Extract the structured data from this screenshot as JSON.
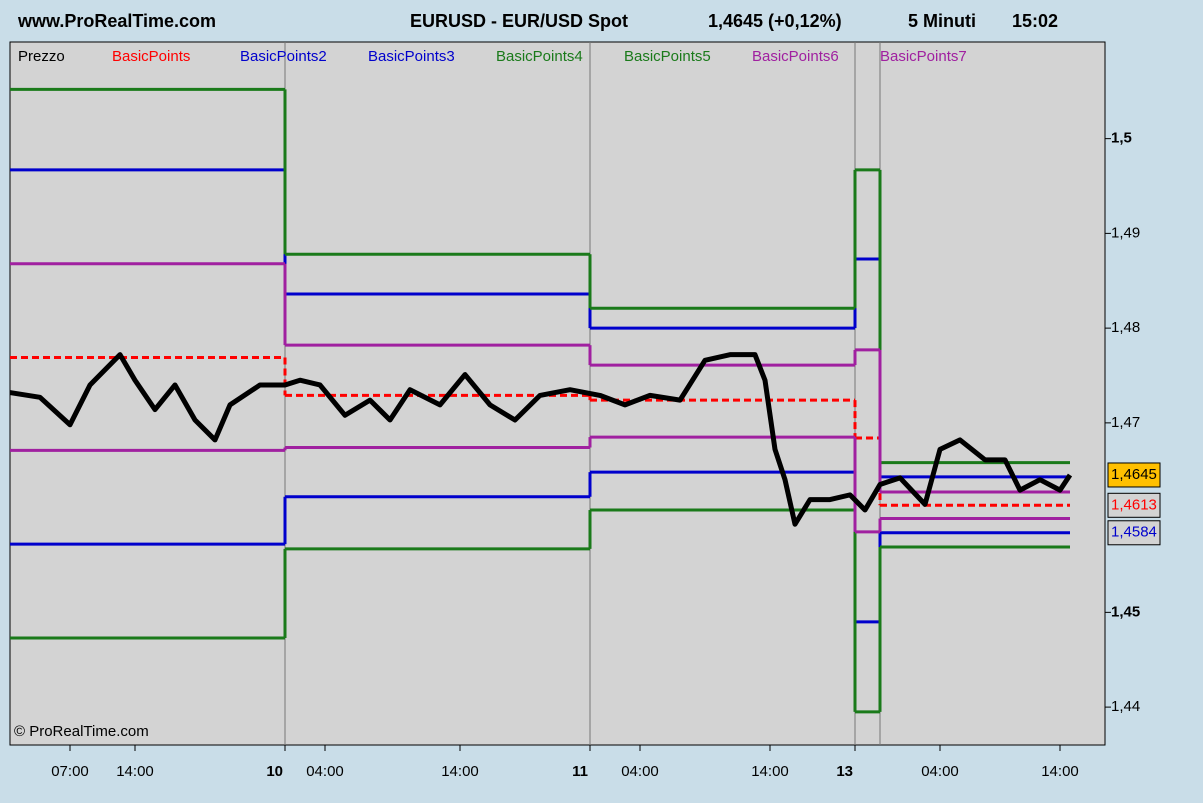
{
  "header": {
    "site": "www.ProRealTime.com",
    "instrument": "EURUSD - EUR/USD Spot",
    "quote": "1,4645 (+0,12%)",
    "timeframe": "5 Minuti",
    "time": "15:02"
  },
  "chart_data": {
    "type": "line",
    "copyright": "© ProRealTime.com",
    "xlim": [
      0,
      219
    ],
    "xticks": [
      {
        "value": 12,
        "label": "07:00"
      },
      {
        "value": 25,
        "label": "14:00"
      },
      {
        "value": 55,
        "label": "10",
        "bold": true
      },
      {
        "value": 63,
        "label": "04:00"
      },
      {
        "value": 90,
        "label": "14:00"
      },
      {
        "value": 116,
        "label": "11",
        "bold": true
      },
      {
        "value": 126,
        "label": "04:00"
      },
      {
        "value": 152,
        "label": "14:00"
      },
      {
        "value": 169,
        "label": "13",
        "bold": true
      },
      {
        "value": 186,
        "label": "04:00"
      },
      {
        "value": 210,
        "label": "14:00"
      }
    ],
    "ylim": [
      1.436,
      1.5102
    ],
    "yticks": [
      {
        "value": 1.44,
        "label": "1,44"
      },
      {
        "value": 1.45,
        "label": "1,45",
        "bold": true
      },
      {
        "value": 1.47,
        "label": "1,47"
      },
      {
        "value": 1.48,
        "label": "1,48"
      },
      {
        "value": 1.49,
        "label": "1,49"
      },
      {
        "value": 1.5,
        "label": "1,5",
        "bold": true
      }
    ],
    "price": {
      "name": "Prezzo",
      "color": "#000000",
      "last_label": "1,4645",
      "x": [
        0,
        6,
        12,
        16,
        22,
        25,
        29,
        33,
        37,
        41,
        44,
        50,
        55,
        58,
        62,
        67,
        72,
        76,
        80,
        86,
        91,
        96,
        101,
        106,
        112,
        118,
        123,
        128,
        134,
        139,
        144,
        149,
        151,
        153,
        155,
        157,
        160,
        164,
        168,
        171,
        174,
        178,
        183,
        186,
        190,
        195,
        199,
        202,
        206,
        210,
        212
      ],
      "values": [
        1.4732,
        1.4727,
        1.4698,
        1.474,
        1.4772,
        1.4745,
        1.4714,
        1.474,
        1.4703,
        1.4682,
        1.4719,
        1.474,
        1.474,
        1.4745,
        1.474,
        1.4708,
        1.4724,
        1.4703,
        1.4735,
        1.4719,
        1.4751,
        1.4719,
        1.4703,
        1.4729,
        1.4735,
        1.4729,
        1.4719,
        1.4729,
        1.4724,
        1.4766,
        1.4772,
        1.4772,
        1.4745,
        1.4672,
        1.464,
        1.4593,
        1.4619,
        1.4619,
        1.4624,
        1.4608,
        1.4635,
        1.4642,
        1.4614,
        1.4672,
        1.4682,
        1.4661,
        1.4661,
        1.4629,
        1.464,
        1.4629,
        1.4645
      ]
    },
    "x": [
      0,
      55,
      116,
      169,
      174
    ],
    "series": [
      {
        "name": "BasicPoints",
        "color": "#ff0000",
        "dashed": true,
        "values": [
          1.4769,
          1.4729,
          1.4724,
          1.4684,
          1.4613
        ],
        "last_label": "1,4613"
      },
      {
        "name": "BasicPoints2",
        "color": "#0000cc",
        "values": [
          1.4967,
          1.4836,
          1.48,
          1.4873,
          1.4643
        ]
      },
      {
        "name": "BasicPoints3",
        "color": "#0000cc",
        "values": [
          1.4572,
          1.4622,
          1.4648,
          1.449,
          1.4584
        ],
        "last_label": "1,4584"
      },
      {
        "name": "BasicPoints4",
        "color": "#1a7a1a",
        "values": [
          1.5052,
          1.4878,
          1.4821,
          1.4967,
          1.4658
        ]
      },
      {
        "name": "BasicPoints5",
        "color": "#1a7a1a",
        "values": [
          1.4473,
          1.4567,
          1.4608,
          1.4395,
          1.4569
        ]
      },
      {
        "name": "BasicPoints6",
        "color": "#a020a0",
        "values": [
          1.4868,
          1.4782,
          1.4761,
          1.4777,
          1.4627
        ]
      },
      {
        "name": "BasicPoints7",
        "color": "#a020a0",
        "values": [
          1.4671,
          1.4674,
          1.4685,
          1.4585,
          1.4599
        ]
      }
    ]
  }
}
